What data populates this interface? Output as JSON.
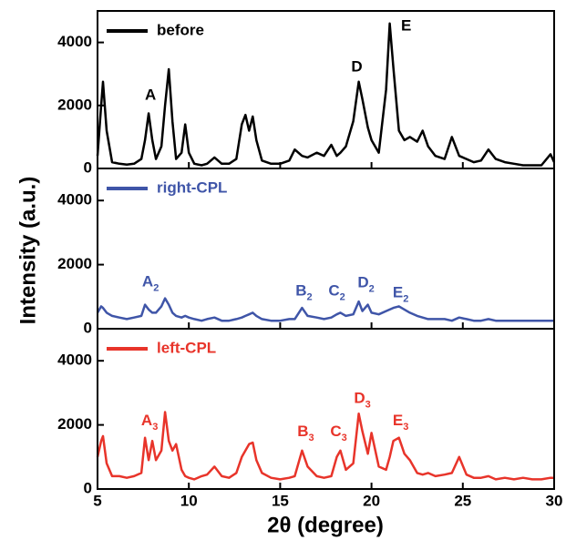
{
  "chart_data": [
    {
      "type": "line",
      "legend": "upper left",
      "x": [
        5.0,
        5.2,
        5.3,
        5.5,
        5.8,
        6.2,
        6.6,
        7.0,
        7.4,
        7.6,
        7.8,
        8.0,
        8.2,
        8.5,
        8.7,
        8.9,
        9.1,
        9.3,
        9.6,
        9.8,
        10.0,
        10.3,
        10.7,
        11.0,
        11.4,
        11.8,
        12.2,
        12.6,
        12.9,
        13.1,
        13.3,
        13.5,
        13.7,
        14.0,
        14.5,
        15.0,
        15.5,
        15.8,
        16.2,
        16.5,
        17.0,
        17.4,
        17.8,
        18.1,
        18.3,
        18.6,
        19.0,
        19.3,
        19.5,
        19.8,
        20.0,
        20.4,
        20.8,
        21.0,
        21.2,
        21.5,
        21.8,
        22.1,
        22.5,
        22.8,
        23.1,
        23.5,
        24.0,
        24.4,
        24.8,
        25.2,
        25.6,
        26.0,
        26.4,
        26.8,
        27.3,
        27.8,
        28.3,
        28.8,
        29.3,
        29.8,
        30.0
      ],
      "series": [
        {
          "name": "before",
          "color": "#000000",
          "values": [
            400,
            2000,
            2750,
            1200,
            200,
            150,
            120,
            150,
            300,
            900,
            1750,
            900,
            300,
            700,
            2000,
            3150,
            1500,
            300,
            500,
            1400,
            500,
            150,
            100,
            150,
            350,
            150,
            150,
            300,
            1400,
            1700,
            1200,
            1650,
            900,
            250,
            150,
            150,
            250,
            600,
            400,
            350,
            500,
            400,
            750,
            400,
            500,
            700,
            1500,
            2750,
            2200,
            1300,
            900,
            500,
            2500,
            4600,
            3200,
            1200,
            900,
            1000,
            850,
            1200,
            700,
            400,
            300,
            1000,
            400,
            300,
            200,
            250,
            600,
            300,
            200,
            150,
            100,
            100,
            100,
            450,
            200
          ]
        }
      ],
      "annotations": [
        {
          "text": "A",
          "x": 7.9,
          "y": 2300
        },
        {
          "text": "D",
          "x": 19.2,
          "y": 3200
        },
        {
          "text": "E",
          "x": 21.9,
          "y": 4500
        }
      ],
      "xlim": [
        5,
        30
      ],
      "ylim": [
        0,
        5000
      ],
      "yticks": [
        0,
        2000,
        4000
      ]
    },
    {
      "type": "line",
      "legend": "upper left",
      "ylabel": "Intensity (a.u.)",
      "x": [
        5.0,
        5.2,
        5.3,
        5.5,
        5.8,
        6.2,
        6.6,
        7.0,
        7.4,
        7.6,
        7.8,
        8.0,
        8.2,
        8.5,
        8.7,
        8.9,
        9.1,
        9.3,
        9.6,
        9.8,
        10.0,
        10.3,
        10.7,
        11.0,
        11.4,
        11.8,
        12.2,
        12.6,
        12.9,
        13.1,
        13.3,
        13.5,
        13.7,
        14.0,
        14.5,
        15.0,
        15.5,
        15.8,
        16.2,
        16.5,
        17.0,
        17.4,
        17.8,
        18.1,
        18.3,
        18.6,
        19.0,
        19.3,
        19.5,
        19.8,
        20.0,
        20.4,
        20.8,
        21.0,
        21.2,
        21.5,
        21.8,
        22.1,
        22.5,
        22.8,
        23.1,
        23.5,
        24.0,
        24.4,
        24.8,
        25.2,
        25.6,
        26.0,
        26.4,
        26.8,
        27.3,
        27.8,
        28.3,
        28.8,
        29.3,
        29.8,
        30.0
      ],
      "series": [
        {
          "name": "right-CPL",
          "color": "#3f55a8",
          "values": [
            500,
            700,
            650,
            500,
            400,
            350,
            300,
            350,
            400,
            750,
            600,
            500,
            500,
            700,
            950,
            750,
            500,
            400,
            350,
            400,
            350,
            300,
            250,
            300,
            350,
            250,
            250,
            300,
            350,
            400,
            450,
            500,
            400,
            300,
            250,
            250,
            300,
            300,
            650,
            400,
            350,
            300,
            350,
            450,
            500,
            400,
            450,
            850,
            550,
            750,
            500,
            450,
            550,
            600,
            650,
            700,
            600,
            500,
            400,
            350,
            300,
            300,
            300,
            250,
            350,
            300,
            250,
            250,
            300,
            250,
            250,
            250,
            250,
            250,
            250,
            250,
            250
          ]
        }
      ],
      "annotations": [
        {
          "text": "A",
          "sub": "2",
          "x": 7.9,
          "y": 1440
        },
        {
          "text": "B",
          "sub": "2",
          "x": 16.3,
          "y": 1150
        },
        {
          "text": "C",
          "sub": "2",
          "x": 18.1,
          "y": 1150
        },
        {
          "text": "D",
          "sub": "2",
          "x": 19.7,
          "y": 1400
        },
        {
          "text": "E",
          "sub": "2",
          "x": 21.6,
          "y": 1100
        }
      ],
      "xlim": [
        5,
        30
      ],
      "ylim": [
        0,
        5000
      ],
      "yticks": [
        0,
        2000,
        4000
      ]
    },
    {
      "type": "line",
      "legend": "upper left",
      "xlabel": "2θ (degree)",
      "x": [
        5.0,
        5.2,
        5.3,
        5.5,
        5.8,
        6.2,
        6.6,
        7.0,
        7.4,
        7.6,
        7.8,
        8.0,
        8.2,
        8.5,
        8.7,
        8.9,
        9.1,
        9.3,
        9.6,
        9.8,
        10.0,
        10.3,
        10.7,
        11.0,
        11.4,
        11.8,
        12.2,
        12.6,
        12.9,
        13.1,
        13.3,
        13.5,
        13.7,
        14.0,
        14.5,
        15.0,
        15.5,
        15.8,
        16.2,
        16.5,
        17.0,
        17.4,
        17.8,
        18.1,
        18.3,
        18.6,
        19.0,
        19.3,
        19.5,
        19.8,
        20.0,
        20.4,
        20.8,
        21.0,
        21.2,
        21.5,
        21.8,
        22.1,
        22.5,
        22.8,
        23.1,
        23.5,
        24.0,
        24.4,
        24.8,
        25.2,
        25.6,
        26.0,
        26.4,
        26.8,
        27.3,
        27.8,
        28.3,
        28.8,
        29.3,
        29.8,
        30.0
      ],
      "series": [
        {
          "name": "left-CPL",
          "color": "#e8342a",
          "values": [
            1000,
            1500,
            1650,
            800,
            400,
            400,
            350,
            400,
            500,
            1600,
            900,
            1500,
            900,
            1200,
            2400,
            1500,
            1200,
            1400,
            600,
            400,
            350,
            300,
            400,
            450,
            700,
            400,
            350,
            500,
            1000,
            1200,
            1400,
            1450,
            900,
            500,
            350,
            300,
            350,
            400,
            1200,
            700,
            400,
            350,
            400,
            1000,
            1200,
            600,
            800,
            2350,
            1800,
            1100,
            1750,
            700,
            600,
            1000,
            1500,
            1600,
            1100,
            900,
            500,
            450,
            500,
            400,
            450,
            500,
            1000,
            450,
            350,
            350,
            400,
            300,
            350,
            300,
            350,
            300,
            300,
            350,
            350
          ]
        }
      ],
      "annotations": [
        {
          "text": "A",
          "sub": "3",
          "x": 7.85,
          "y": 2100
        },
        {
          "text": "B",
          "sub": "3",
          "x": 16.4,
          "y": 1760
        },
        {
          "text": "C",
          "sub": "3",
          "x": 18.2,
          "y": 1760
        },
        {
          "text": "D",
          "sub": "3",
          "x": 19.5,
          "y": 2800
        },
        {
          "text": "E",
          "sub": "3",
          "x": 21.6,
          "y": 2100
        }
      ],
      "xlim": [
        5,
        30
      ],
      "ylim": [
        0,
        5000
      ],
      "yticks": [
        0,
        2000,
        4000
      ],
      "xticks": [
        5,
        10,
        15,
        20,
        25,
        30
      ]
    }
  ]
}
